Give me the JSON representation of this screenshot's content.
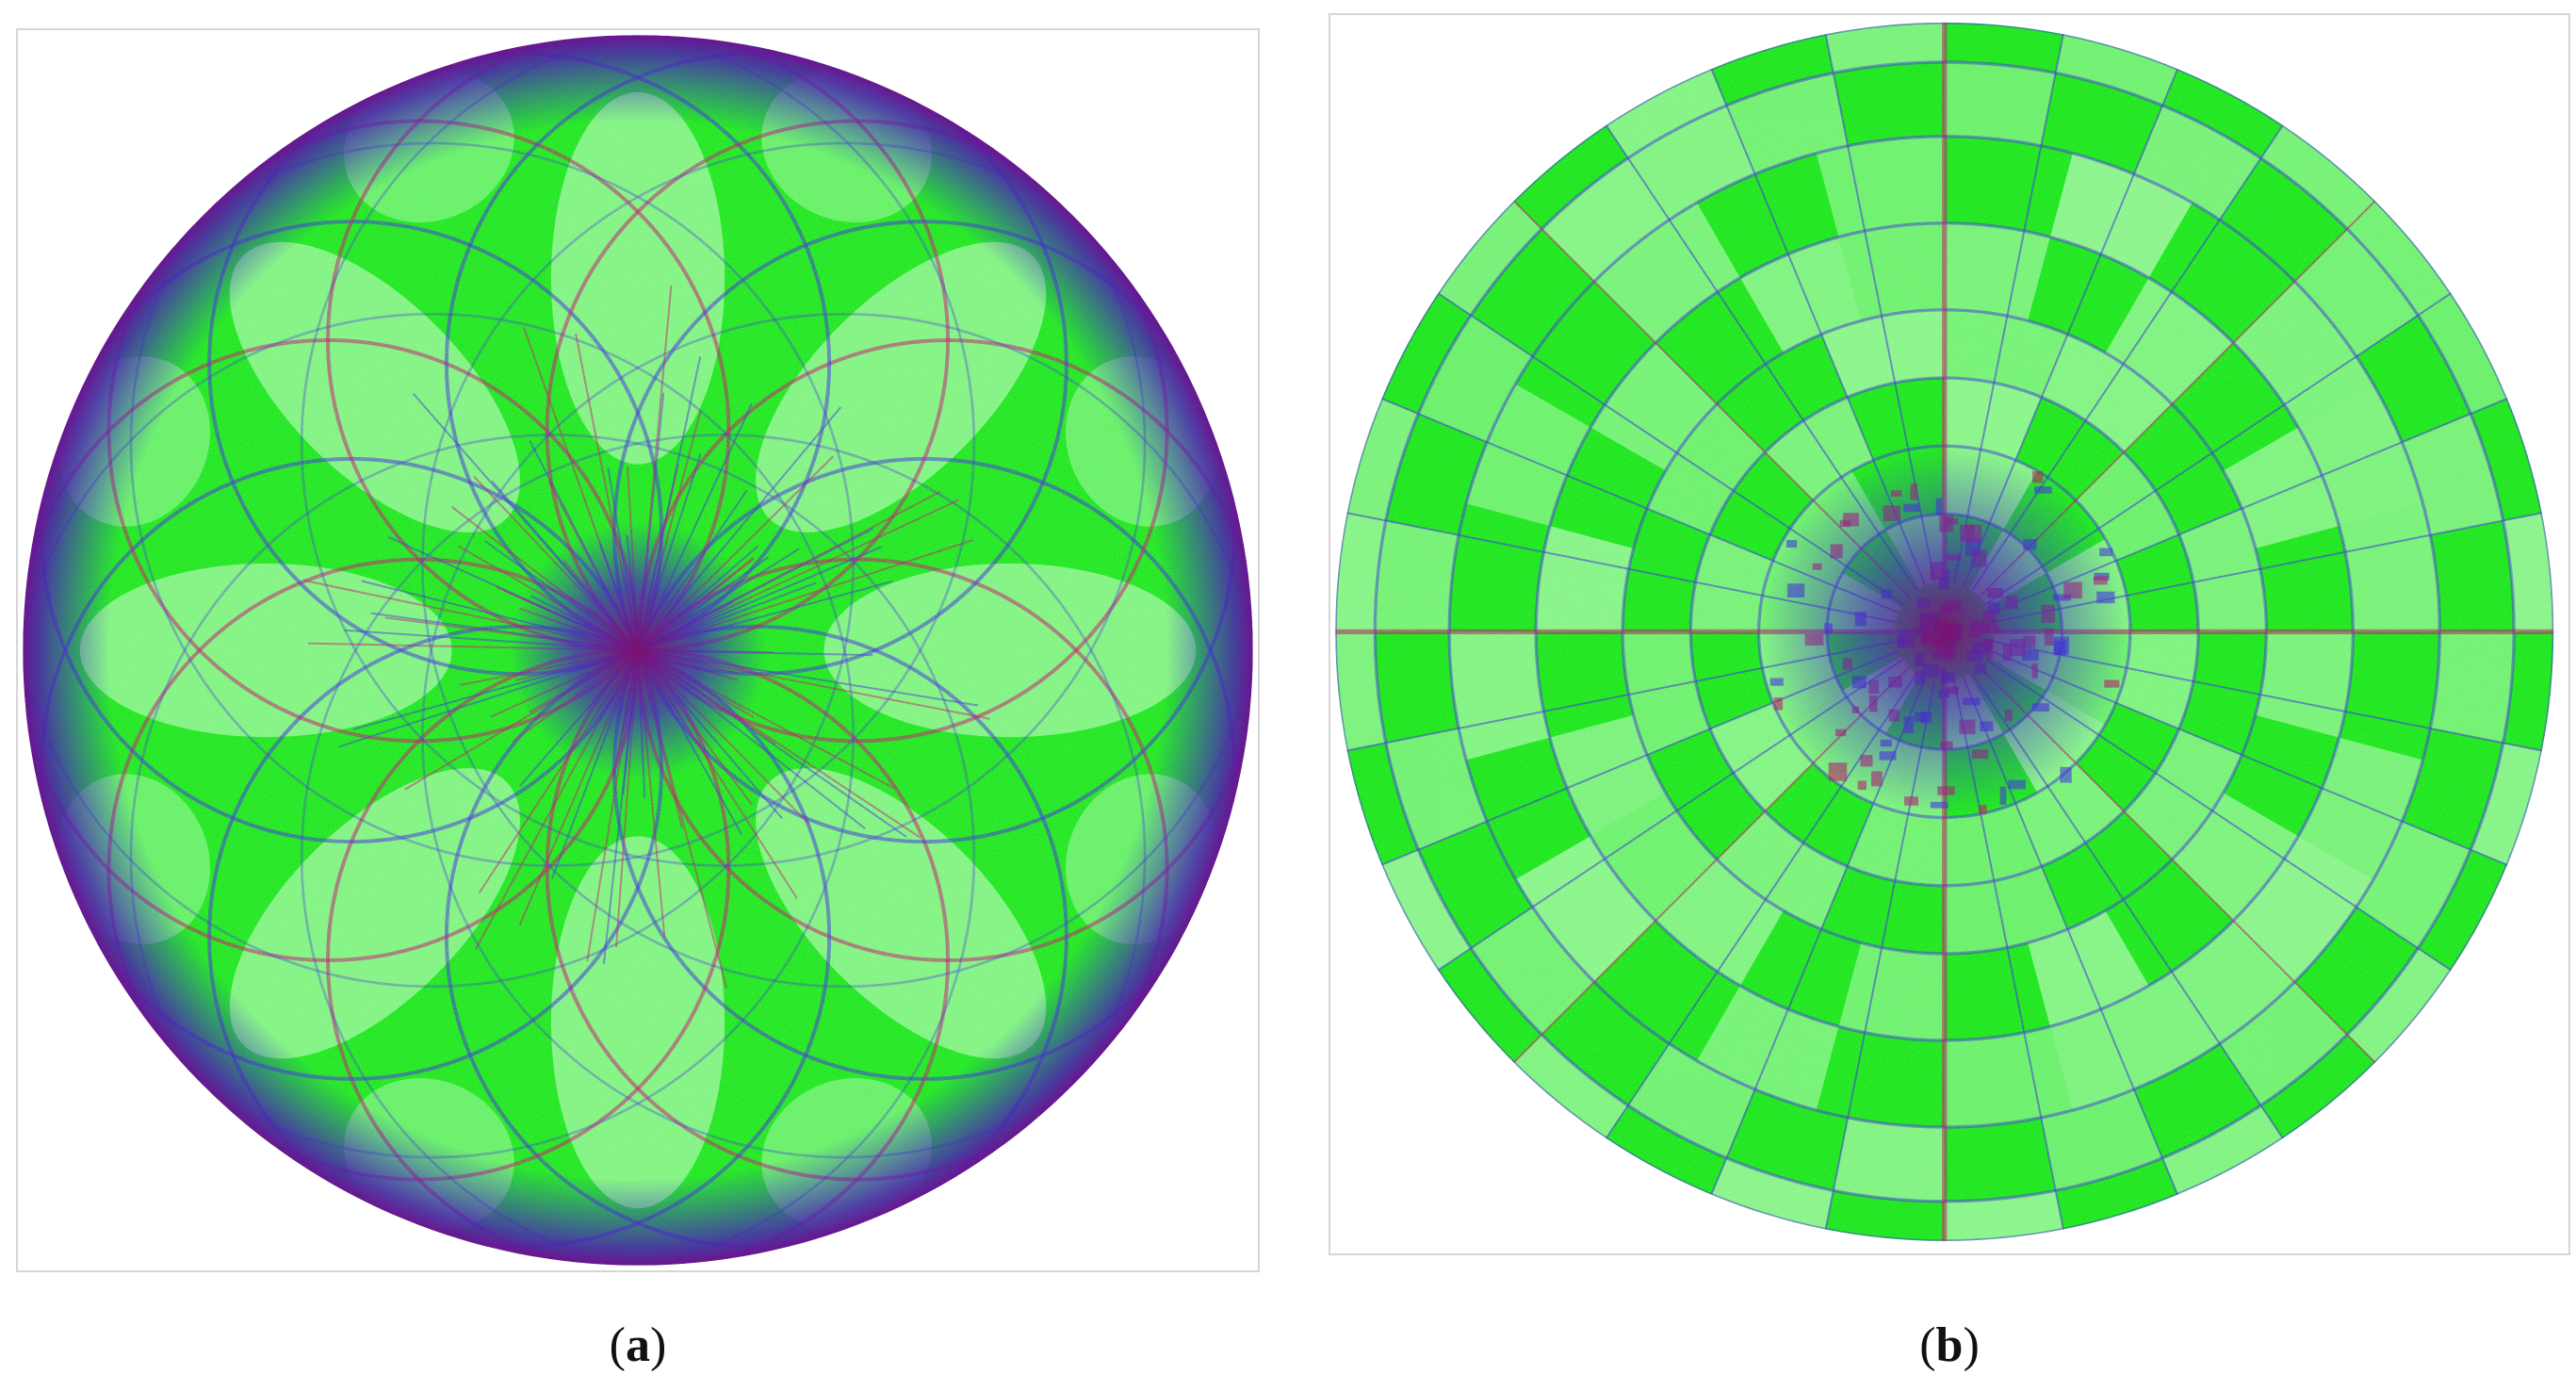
{
  "figure": {
    "panels": [
      {
        "id": "a",
        "caption_open": "(",
        "caption_letter": "a",
        "caption_close": ")",
        "pattern": "flower-rose",
        "colors": {
          "fill": "#19e619",
          "light": "#9ff79f",
          "line_blue": "#3a2fd9",
          "line_red": "#c0146a"
        }
      },
      {
        "id": "b",
        "caption_open": "(",
        "caption_letter": "b",
        "caption_close": ")",
        "pattern": "polar-checker",
        "colors": {
          "fill": "#19e619",
          "light": "#a6f8a6",
          "line_blue": "#3a2fd9",
          "line_red": "#b5145e"
        }
      }
    ]
  }
}
